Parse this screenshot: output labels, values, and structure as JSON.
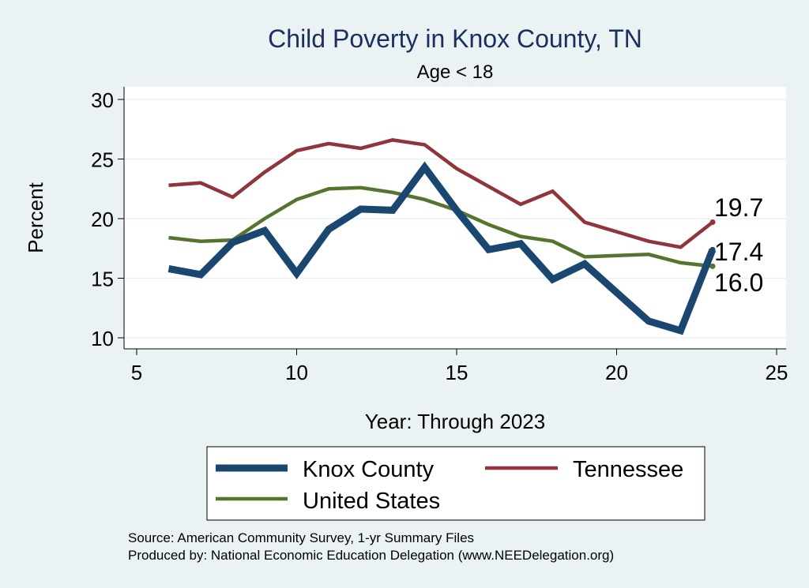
{
  "chart_data": {
    "type": "line",
    "title": "Child Poverty in Knox County, TN",
    "subtitle": "Age < 18",
    "xlabel": "Year: Through 2023",
    "ylabel": "Percent",
    "xlim": [
      5,
      25
    ],
    "ylim": [
      10,
      30
    ],
    "xticks": [
      "5",
      "10",
      "15",
      "20",
      "25"
    ],
    "yticks": [
      "10",
      "15",
      "20",
      "25",
      "30"
    ],
    "grid": true,
    "legend_position": "bottom",
    "series": [
      {
        "name": "Knox County",
        "color": "#1a476f",
        "x": [
          6,
          7,
          8,
          9,
          10,
          11,
          12,
          13,
          14,
          15,
          16,
          17,
          18,
          19,
          20,
          21,
          22,
          23
        ],
        "values": [
          15.8,
          15.3,
          18.0,
          19.0,
          15.4,
          19.1,
          20.8,
          20.7,
          24.3,
          20.7,
          17.4,
          17.9,
          14.9,
          16.2,
          13.8,
          11.4,
          10.6,
          17.4
        ],
        "end_label": "17.4"
      },
      {
        "name": "Tennessee",
        "color": "#90353b",
        "x": [
          6,
          7,
          8,
          9,
          10,
          11,
          12,
          13,
          14,
          15,
          16,
          17,
          18,
          19,
          20,
          21,
          22,
          23
        ],
        "values": [
          22.8,
          23.0,
          21.8,
          23.9,
          25.7,
          26.3,
          25.9,
          26.6,
          26.2,
          24.2,
          22.7,
          21.2,
          22.3,
          19.7,
          18.9,
          18.1,
          17.6,
          19.7
        ],
        "end_label": "19.7"
      },
      {
        "name": "United States",
        "color": "#55752f",
        "x": [
          6,
          7,
          8,
          9,
          10,
          11,
          12,
          13,
          14,
          15,
          16,
          17,
          18,
          19,
          21,
          22,
          23
        ],
        "values": [
          18.4,
          18.1,
          18.2,
          20.0,
          21.6,
          22.5,
          22.6,
          22.2,
          21.6,
          20.7,
          19.5,
          18.5,
          18.1,
          16.8,
          17.0,
          16.3,
          16.0
        ],
        "end_label": "16.0"
      }
    ]
  },
  "footer": {
    "source": "Source: American Community Survey, 1-yr Summary Files",
    "produced_by": "Produced by: National Economic Education Delegation (www.NEEDelegation.org)"
  }
}
